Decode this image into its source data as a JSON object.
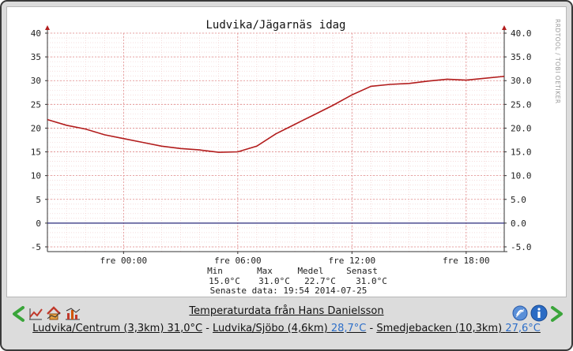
{
  "chart_data": {
    "type": "line",
    "title": "Ludvika/Jägarnäs idag",
    "watermark": "RRDTOOL / TOBI OETIKER",
    "x_ticks": [
      {
        "hour": 0,
        "label": "fre 00:00"
      },
      {
        "hour": 6,
        "label": "fre 06:00"
      },
      {
        "hour": 12,
        "label": "fre 12:00"
      },
      {
        "hour": 18,
        "label": "fre 18:00"
      }
    ],
    "xlim_hours": [
      -4,
      20
    ],
    "ylim": [
      -6,
      40
    ],
    "left_ticks": [
      "-5",
      "0",
      "5",
      "10",
      "15",
      "20",
      "25",
      "30",
      "35",
      "40"
    ],
    "right_ticks": [
      "-5.0",
      "0.0",
      "5.0",
      "10.0",
      "15.0",
      "20.0",
      "25.0",
      "30.0",
      "35.0",
      "40.0"
    ],
    "tick_values": [
      -5,
      0,
      5,
      10,
      15,
      20,
      25,
      30,
      35,
      40
    ],
    "grid": true,
    "line_color": "#b21c1c",
    "series": [
      {
        "x": [
          -4,
          -3,
          -2,
          -1,
          0,
          1,
          2,
          3,
          4,
          5,
          6,
          7,
          8,
          9,
          10,
          11,
          12,
          13,
          14,
          15,
          16,
          17,
          18,
          19,
          20
        ],
        "values": [
          21.8,
          20.6,
          19.8,
          18.6,
          17.8,
          17.0,
          16.2,
          15.7,
          15.4,
          14.9,
          15.0,
          16.2,
          18.8,
          20.8,
          22.8,
          24.8,
          27.0,
          28.8,
          29.2,
          29.4,
          29.9,
          30.3,
          30.1,
          30.5,
          30.9
        ]
      }
    ],
    "stats": {
      "headers": [
        "Min",
        "Max",
        "Medel",
        "Senast"
      ],
      "values": [
        "15.0°C",
        "31.0°C",
        "22.7°C",
        "31.0°C"
      ],
      "updated": "Senaste data: 19:54 2014-07-25"
    }
  },
  "footer": {
    "credit": "Temperaturdata från Hans Danielsson",
    "stations": [
      {
        "name": "Ludvika/Centrum (3,3km)",
        "value": "31,0°C",
        "value_blue": false
      },
      {
        "name": "Ludvika/Sjöbo (4,6km)",
        "value": "28,7°C",
        "value_blue": true
      },
      {
        "name": "Smedjebacken (10,3km)",
        "value": "27,6°C",
        "value_blue": true
      }
    ],
    "separator": " - ",
    "colors": {
      "arrow": "#3aa53a",
      "info": "#2a6bc4",
      "link_blue": "#2e6fc9"
    },
    "icons": [
      "arrow-left-icon",
      "chart-small-icon",
      "chart-house-icon",
      "chart-bars-icon",
      "help-icon",
      "info-icon",
      "arrow-right-icon"
    ]
  }
}
